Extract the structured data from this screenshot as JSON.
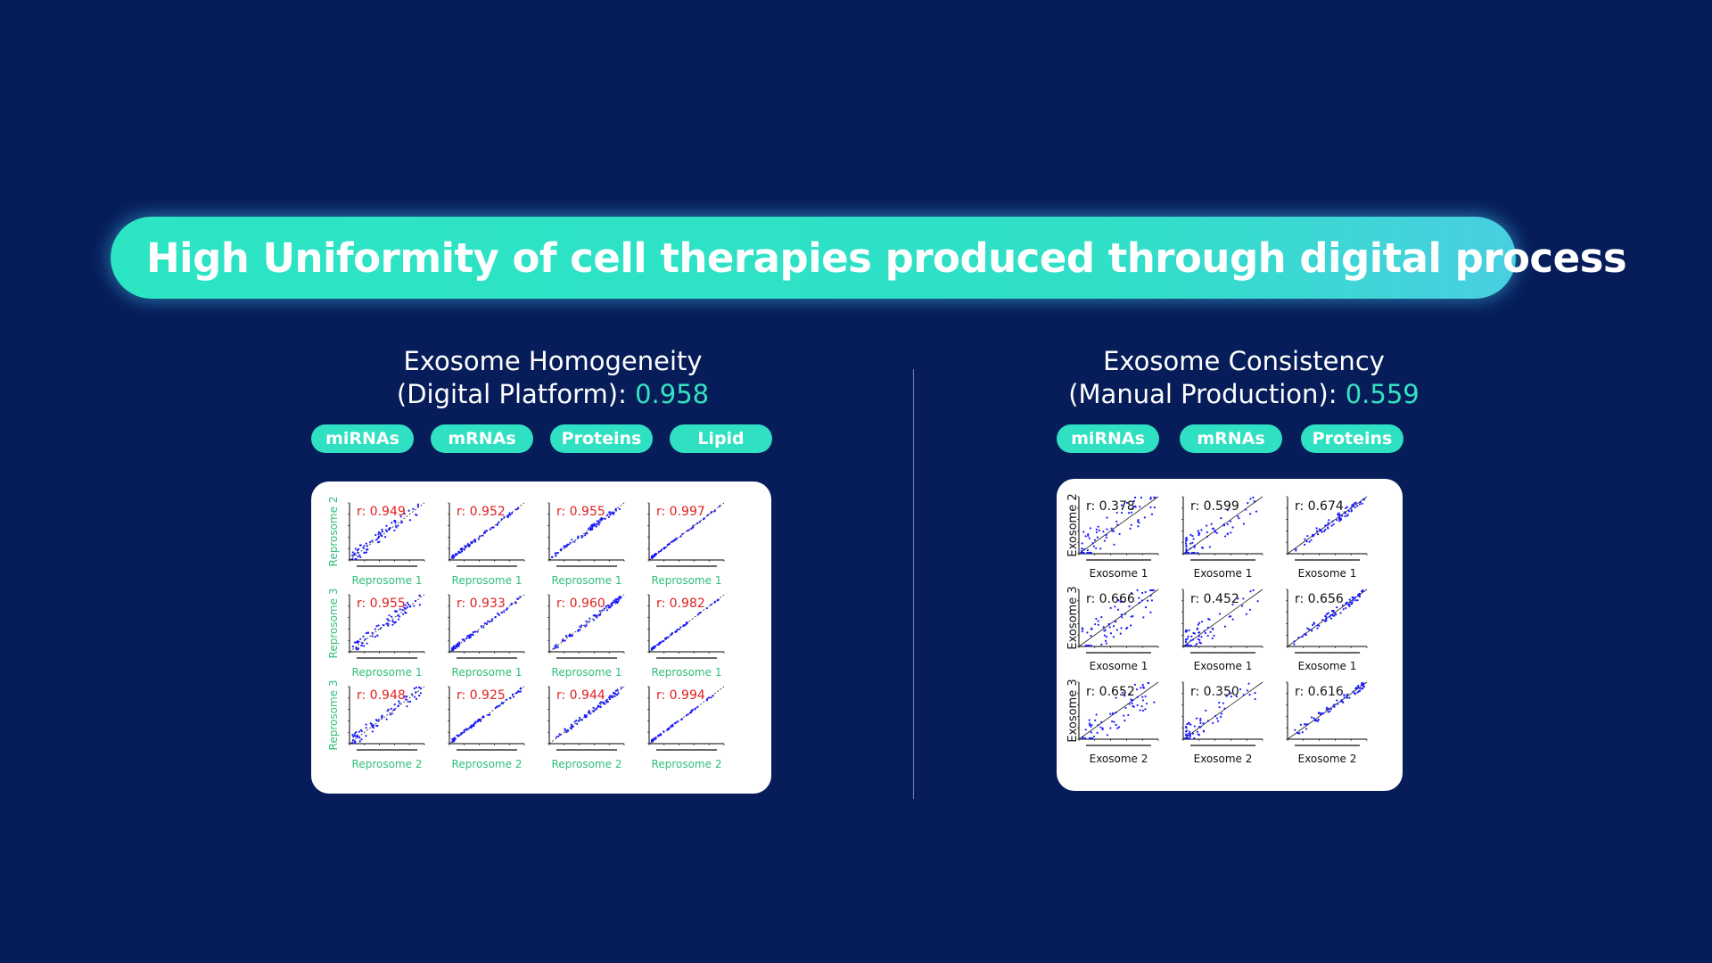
{
  "title": "High Uniformity of cell therapies produced through digital process",
  "left": {
    "heading_line1": "Exosome Homogeneity",
    "heading_line2": "(Digital Platform): ",
    "value": "0.958",
    "tags": [
      "miRNAs",
      "mRNAs",
      "Proteins",
      "Lipid"
    ],
    "row_labels": [
      "Reprosome 2",
      "Reprosome 3",
      "Reprosome 3"
    ],
    "col_labels": [
      [
        "Reprosome 1",
        "Reprosome 1",
        "Reprosome 1",
        "Reprosome 1"
      ],
      [
        "Reprosome 1",
        "Reprosome 1",
        "Reprosome 1",
        "Reprosome 1"
      ],
      [
        "Reprosome 2",
        "Reprosome 2",
        "Reprosome 2",
        "Reprosome 2"
      ]
    ],
    "r_values": [
      [
        "r: 0.949",
        "r: 0.952",
        "r: 0.955",
        "r: 0.997"
      ],
      [
        "r: 0.955",
        "r: 0.933",
        "r: 0.960",
        "r: 0.982"
      ],
      [
        "r: 0.948",
        "r: 0.925",
        "r: 0.944",
        "r: 0.994"
      ]
    ]
  },
  "right": {
    "heading_line1": "Exosome Consistency",
    "heading_line2": "(Manual Production): ",
    "value": "0.559",
    "tags": [
      "miRNAs",
      "mRNAs",
      "Proteins"
    ],
    "row_labels": [
      "Exosome 2",
      "Exosome 3",
      "Exosome 3"
    ],
    "col_labels": [
      [
        "Exosome 1",
        "Exosome 1",
        "Exosome 1"
      ],
      [
        "Exosome 1",
        "Exosome 1",
        "Exosome 1"
      ],
      [
        "Exosome 2",
        "Exosome 2",
        "Exosome 2"
      ]
    ],
    "r_values": [
      [
        "r: 0.378",
        "r: 0.599",
        "r: 0.674"
      ],
      [
        "r: 0.666",
        "r: 0.452",
        "r: 0.656"
      ],
      [
        "r: 0.652",
        "r: 0.350",
        "r: 0.616"
      ]
    ]
  },
  "colors": {
    "background": "#061d5a",
    "accent": "#2fe0c2",
    "r_left": "#e02020",
    "r_right": "#111111",
    "row_label_left": "#2fbf7a",
    "points": "#1a1aff"
  }
}
